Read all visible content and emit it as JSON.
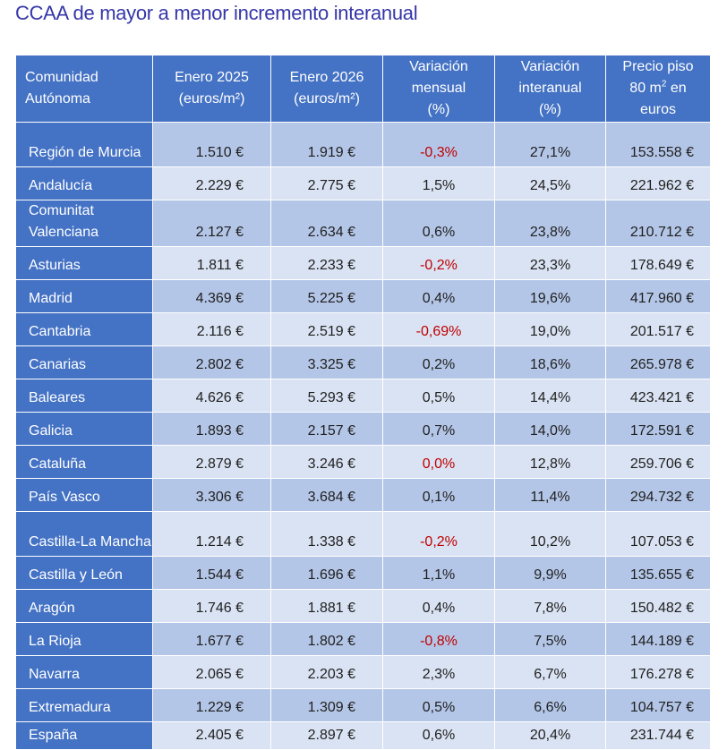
{
  "title": "CCAA de mayor a menor incremento interanual",
  "colors": {
    "header_bg": "#4472c4",
    "row_dark": "#b4c6e7",
    "row_light": "#dae3f3",
    "negative": "#c00000",
    "title": "#3536a8"
  },
  "headers": {
    "region": [
      "Comunidad",
      "Autónoma"
    ],
    "enero2025": [
      "Enero 2025",
      "(euros/m²)"
    ],
    "enero2026": [
      "Enero 2026",
      "(euros/m²)"
    ],
    "mensual": [
      "Variación",
      "mensual",
      "(%)"
    ],
    "interanual": [
      "Variación",
      "interanual",
      "(%)"
    ],
    "precio": [
      "Precio piso",
      "80 m",
      "2",
      " en",
      "euros"
    ]
  },
  "rows": [
    {
      "region": "Región de Murcia",
      "enero2025": "1.510 €",
      "enero2026": "1.919 €",
      "mensual": "-0,3%",
      "mensual_color": "#c00000",
      "interanual": "27,1%",
      "precio": "153.558 €"
    },
    {
      "region": "Andalucía",
      "enero2025": "2.229 €",
      "enero2026": "2.775 €",
      "mensual": "1,5%",
      "interanual": "24,5%",
      "precio": "221.962 €"
    },
    {
      "region": "Comunitat Valenciana",
      "enero2025": "2.127 €",
      "enero2026": "2.634 €",
      "mensual": "0,6%",
      "interanual": "23,8%",
      "precio": "210.712 €"
    },
    {
      "region": "Asturias",
      "enero2025": "1.811 €",
      "enero2026": "2.233 €",
      "mensual": "-0,2%",
      "mensual_color": "#c00000",
      "interanual": "23,3%",
      "precio": "178.649 €"
    },
    {
      "region": "Madrid",
      "enero2025": "4.369 €",
      "enero2026": "5.225 €",
      "mensual": "0,4%",
      "interanual": "19,6%",
      "precio": "417.960 €"
    },
    {
      "region": "Cantabria",
      "enero2025": "2.116 €",
      "enero2026": "2.519 €",
      "mensual": "-0,69%",
      "mensual_color": "#c00000",
      "interanual": "19,0%",
      "precio": "201.517 €"
    },
    {
      "region": "Canarias",
      "enero2025": "2.802 €",
      "enero2026": "3.325 €",
      "mensual": "0,2%",
      "interanual": "18,6%",
      "precio": "265.978 €"
    },
    {
      "region": "Baleares",
      "enero2025": "4.626 €",
      "enero2026": "5.293 €",
      "mensual": "0,5%",
      "interanual": "14,4%",
      "precio": "423.421 €"
    },
    {
      "region": "Galicia",
      "enero2025": "1.893 €",
      "enero2026": "2.157 €",
      "mensual": "0,7%",
      "interanual": "14,0%",
      "precio": "172.591 €"
    },
    {
      "region": "Cataluña",
      "enero2025": "2.879 €",
      "enero2026": "3.246 €",
      "mensual": "0,0%",
      "mensual_color": "#c00000",
      "interanual": "12,8%",
      "precio": "259.706 €"
    },
    {
      "region": "País Vasco",
      "enero2025": "3.306 €",
      "enero2026": "3.684 €",
      "mensual": "0,1%",
      "interanual": "11,4%",
      "precio": "294.732 €"
    },
    {
      "region": "Castilla-La Mancha",
      "enero2025": "1.214 €",
      "enero2026": "1.338 €",
      "mensual": "-0,2%",
      "mensual_color": "#c00000",
      "interanual": "10,2%",
      "precio": "107.053 €"
    },
    {
      "region": "Castilla y León",
      "enero2025": "1.544 €",
      "enero2026": "1.696 €",
      "mensual": "1,1%",
      "interanual": "9,9%",
      "precio": "135.655 €"
    },
    {
      "region": "Aragón",
      "enero2025": "1.746 €",
      "enero2026": "1.881 €",
      "mensual": "0,4%",
      "interanual": "7,8%",
      "precio": "150.482 €"
    },
    {
      "region": "La Rioja",
      "enero2025": "1.677 €",
      "enero2026": "1.802 €",
      "mensual": "-0,8%",
      "mensual_color": "#c00000",
      "interanual": "7,5%",
      "precio": "144.189 €"
    },
    {
      "region": "Navarra",
      "enero2025": "2.065 €",
      "enero2026": "2.203 €",
      "mensual": "2,3%",
      "interanual": "6,7%",
      "precio": "176.278 €"
    },
    {
      "region": "Extremadura",
      "enero2025": "1.229 €",
      "enero2026": "1.309 €",
      "mensual": "0,5%",
      "interanual": "6,6%",
      "precio": "104.757 €"
    },
    {
      "region": "España",
      "enero2025": "2.405 €",
      "enero2026": "2.897 €",
      "mensual": "0,6%",
      "interanual": "20,4%",
      "precio": "231.744 €"
    }
  ]
}
